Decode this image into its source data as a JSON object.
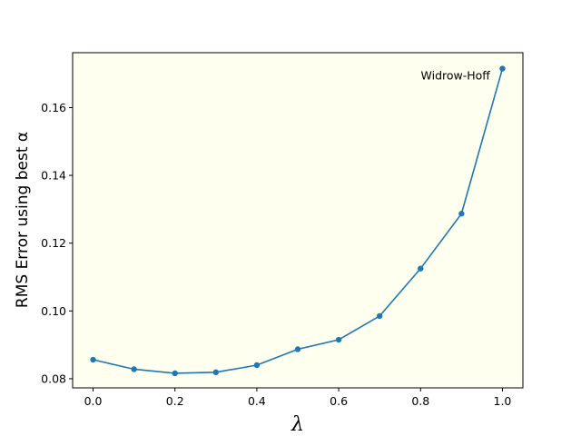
{
  "chart_data": {
    "type": "line",
    "title": "",
    "xlabel": "λ",
    "ylabel": "RMS Error using best α",
    "xlim": [
      -0.05,
      1.05
    ],
    "ylim": [
      0.0773,
      0.1762
    ],
    "xticks": [
      0.0,
      0.2,
      0.4,
      0.6,
      0.8,
      1.0
    ],
    "xtick_labels": [
      "0.0",
      "0.2",
      "0.4",
      "0.6",
      "0.8",
      "1.0"
    ],
    "yticks": [
      0.08,
      0.1,
      0.12,
      0.14,
      0.16
    ],
    "ytick_labels": [
      "0.08",
      "0.10",
      "0.12",
      "0.14",
      "0.16"
    ],
    "grid": false,
    "background_color": "#fffff0",
    "series": [
      {
        "color": "#1f77b4",
        "marker": "circle",
        "x": [
          0.0,
          0.1,
          0.2,
          0.3,
          0.4,
          0.5,
          0.6,
          0.7,
          0.8,
          0.9,
          1.0
        ],
        "y": [
          0.0856,
          0.0828,
          0.0816,
          0.0819,
          0.084,
          0.0887,
          0.0915,
          0.0985,
          0.1125,
          0.1287,
          0.1715
        ]
      }
    ],
    "annotations": [
      {
        "text": "Widrow-Hoff",
        "x": 0.97,
        "y": 0.1695
      }
    ]
  }
}
